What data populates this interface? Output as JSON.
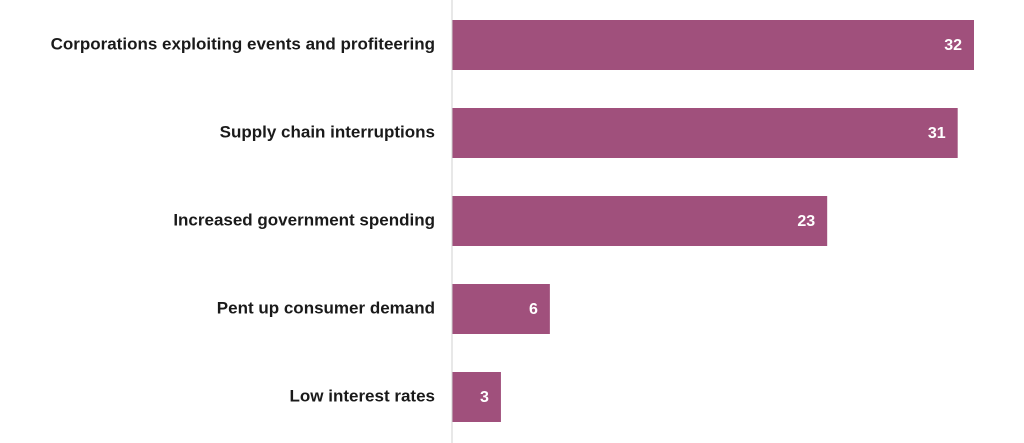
{
  "chart_data": {
    "type": "bar",
    "categories": [
      "Corporations exploiting events and profiteering",
      "Supply chain interruptions",
      "Increased government spending",
      "Pent up consumer demand",
      "Low interest rates"
    ],
    "values": [
      32,
      31,
      23,
      6,
      3
    ],
    "color": "#a0507c"
  }
}
